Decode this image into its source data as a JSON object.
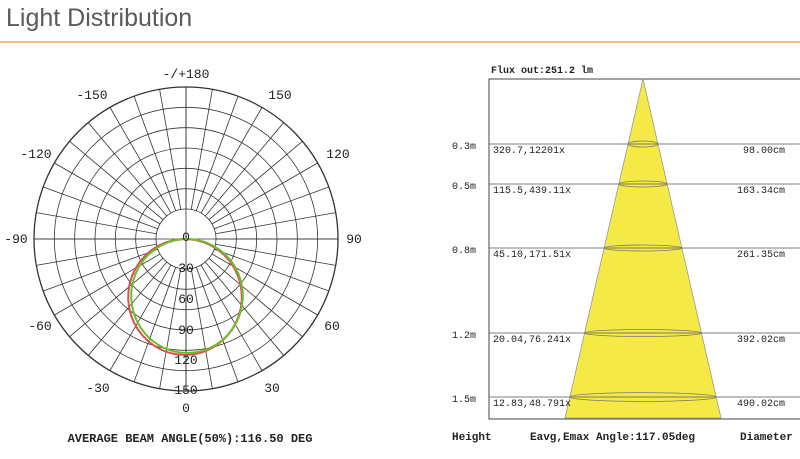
{
  "header": {
    "title": "Light Distribution",
    "rule_color": "#f1c27d"
  },
  "polar": {
    "outer_angle_labels": [
      {
        "text": "-/+180"
      },
      {
        "text": "150"
      },
      {
        "text": "120"
      },
      {
        "text": "90"
      },
      {
        "text": "60"
      },
      {
        "text": "30"
      },
      {
        "text": "0"
      },
      {
        "text": "-30"
      },
      {
        "text": "-60"
      },
      {
        "text": "-90"
      },
      {
        "text": "-120"
      },
      {
        "text": "-150"
      }
    ],
    "radial_scale_labels": [
      "0",
      "30",
      "60",
      "90",
      "120",
      "150"
    ],
    "curve_colors": {
      "c0_c180": "#d9534f",
      "c90_c270": "#6cbf2c"
    },
    "beam_angle_caption": "AVERAGE BEAM ANGLE(50%):116.50 DEG"
  },
  "cone": {
    "flux": "Flux out:251.2 lm",
    "rows": [
      {
        "height": "0.3m",
        "values": "320.7,12201x",
        "diameter": "98.00cm"
      },
      {
        "height": "0.5m",
        "values": "115.5,439.11x",
        "diameter": "163.34cm"
      },
      {
        "height": "0.8m",
        "values": "45.10,171.51x",
        "diameter": "261.35cm"
      },
      {
        "height": "1.2m",
        "values": "20.04,76.241x",
        "diameter": "392.02cm"
      },
      {
        "height": "1.5m",
        "values": "12.83,48.791x",
        "diameter": "490.02cm"
      }
    ],
    "footer": {
      "height_label": "Height",
      "eavg_label": "Eavg,Emax Angle:117.05deg",
      "diameter_label": "Diameter"
    },
    "fill_color": "#f5ea45"
  }
}
